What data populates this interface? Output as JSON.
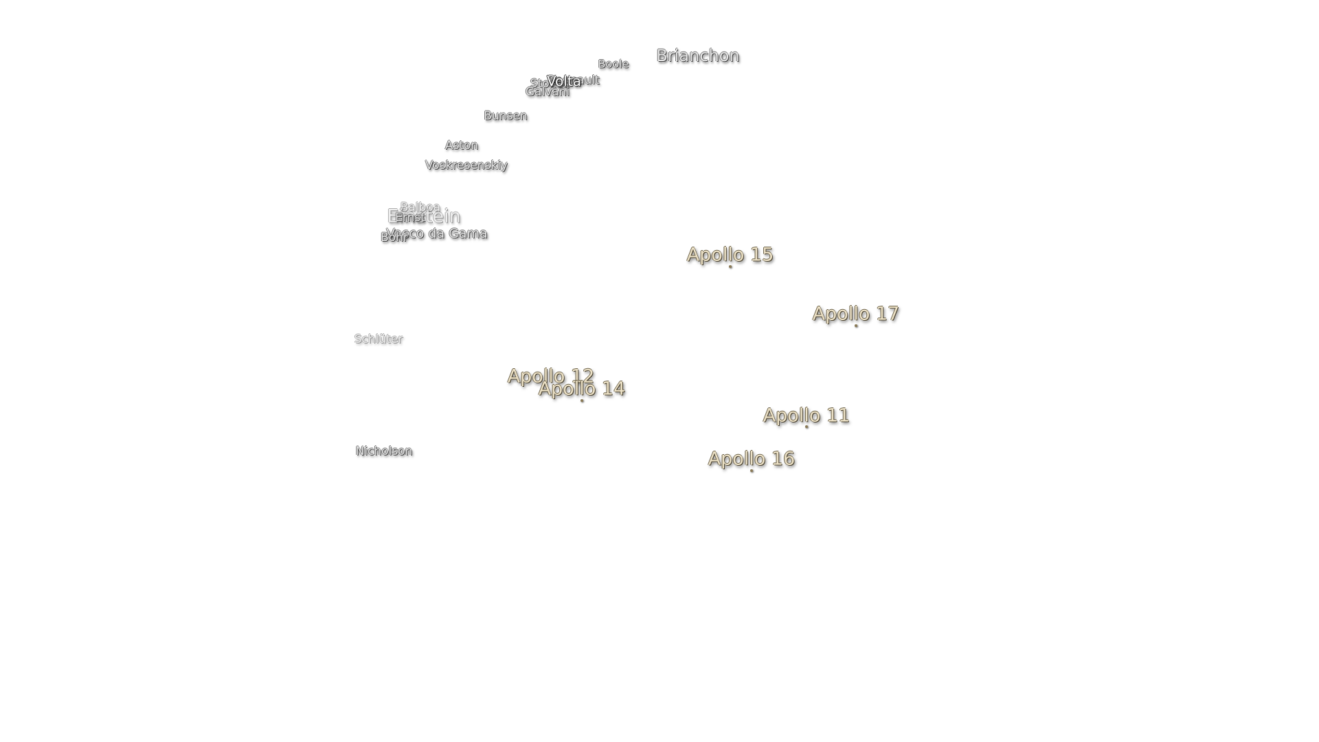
{
  "craters": [
    "Brianchon",
    "Boole",
    "Regnault",
    "Stokes",
    "Galvani",
    "Volta",
    "Bunsen",
    "Aston",
    "Voskresenskiy",
    "Balboa",
    "Einstein",
    "Ernst",
    "Vasco da Gama",
    "Bohr",
    "Schlüter",
    "Nicholson"
  ],
  "landing_sites": [
    "Apollo 15",
    "Apollo 17",
    "Apollo 12",
    "Apollo 14",
    "Apollo 11",
    "Apollo 16"
  ]
}
